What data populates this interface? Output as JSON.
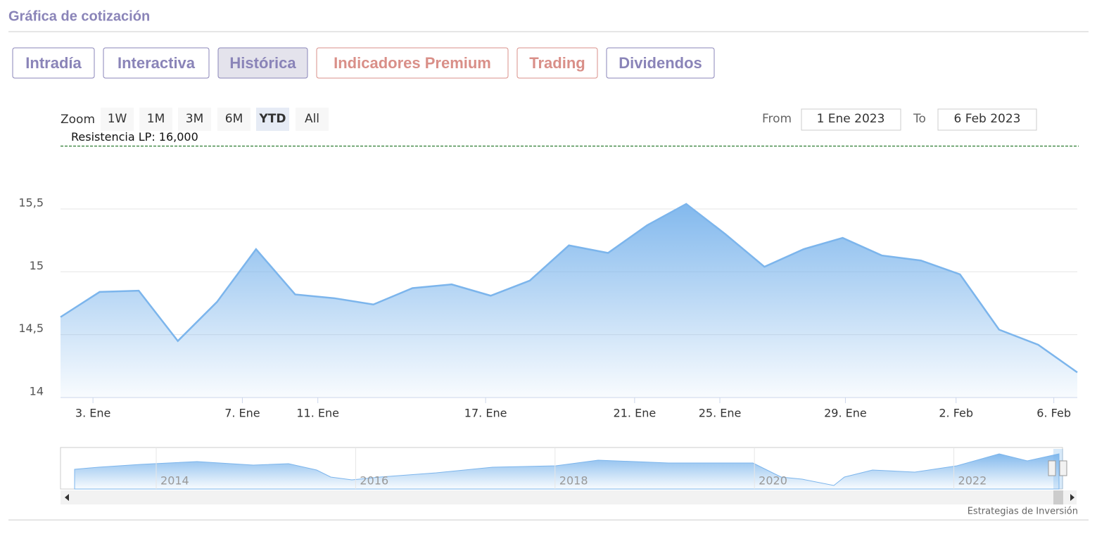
{
  "header": {
    "title": "Gráfica de cotización"
  },
  "tabs": [
    {
      "label": "Intradía",
      "color": "#8a84b8"
    },
    {
      "label": "Interactiva",
      "color": "#8a84b8"
    },
    {
      "label": "Histórica",
      "color": "#8a84b8",
      "active": true
    },
    {
      "label": "Indicadores Premium",
      "color": "#d98f88"
    },
    {
      "label": "Trading",
      "color": "#d98f88"
    },
    {
      "label": "Dividendos",
      "color": "#8a84b8"
    }
  ],
  "zoom": {
    "label": "Zoom",
    "buttons": [
      "1W",
      "1M",
      "3M",
      "6M",
      "YTD",
      "All"
    ],
    "active": "YTD"
  },
  "range": {
    "from_label": "From",
    "from": "1 Ene 2023",
    "to_label": "To",
    "to": "6 Feb 2023"
  },
  "chart_data": {
    "type": "area",
    "color": "#7cb5ec",
    "x": [
      0,
      1,
      2,
      3,
      4,
      5,
      6,
      7,
      8,
      9,
      10,
      11,
      12,
      13,
      14,
      15,
      16,
      17,
      18,
      19,
      20,
      21,
      22,
      23,
      24,
      25,
      26
    ],
    "values": [
      14.64,
      14.84,
      14.85,
      14.45,
      14.76,
      15.18,
      14.82,
      14.79,
      14.74,
      14.87,
      14.9,
      14.81,
      14.93,
      15.21,
      15.15,
      15.37,
      15.54,
      15.3,
      15.04,
      15.18,
      15.27,
      15.13,
      15.09,
      14.98,
      14.54,
      14.42,
      14.2
    ],
    "xlim": [
      0,
      26
    ],
    "xticks": [
      {
        "value": 0.83,
        "label": "3. Ene"
      },
      {
        "value": 4.65,
        "label": "7. Ene"
      },
      {
        "value": 6.58,
        "label": "11. Ene"
      },
      {
        "value": 10.87,
        "label": "17. Ene"
      },
      {
        "value": 14.68,
        "label": "21. Ene"
      },
      {
        "value": 16.86,
        "label": "25. Ene"
      },
      {
        "value": 20.07,
        "label": "29. Ene"
      },
      {
        "value": 22.9,
        "label": "2. Feb"
      },
      {
        "value": 25.4,
        "label": "6. Feb"
      }
    ],
    "ylim": [
      14,
      16
    ],
    "yticks": [
      {
        "value": 14,
        "label": "14"
      },
      {
        "value": 14.5,
        "label": "14,5"
      },
      {
        "value": 15,
        "label": "15"
      },
      {
        "value": 15.5,
        "label": "15,5"
      }
    ],
    "grid": true,
    "plot_line": {
      "value": 16,
      "label": "Resistencia LP: 16,000",
      "color": "#2e7d32"
    }
  },
  "navigator": {
    "xlim": [
      2013.04,
      2023.09
    ],
    "xticks": [
      2014,
      2016,
      2018,
      2020,
      2022
    ]
  },
  "footer": "Estrategias de Inversión"
}
